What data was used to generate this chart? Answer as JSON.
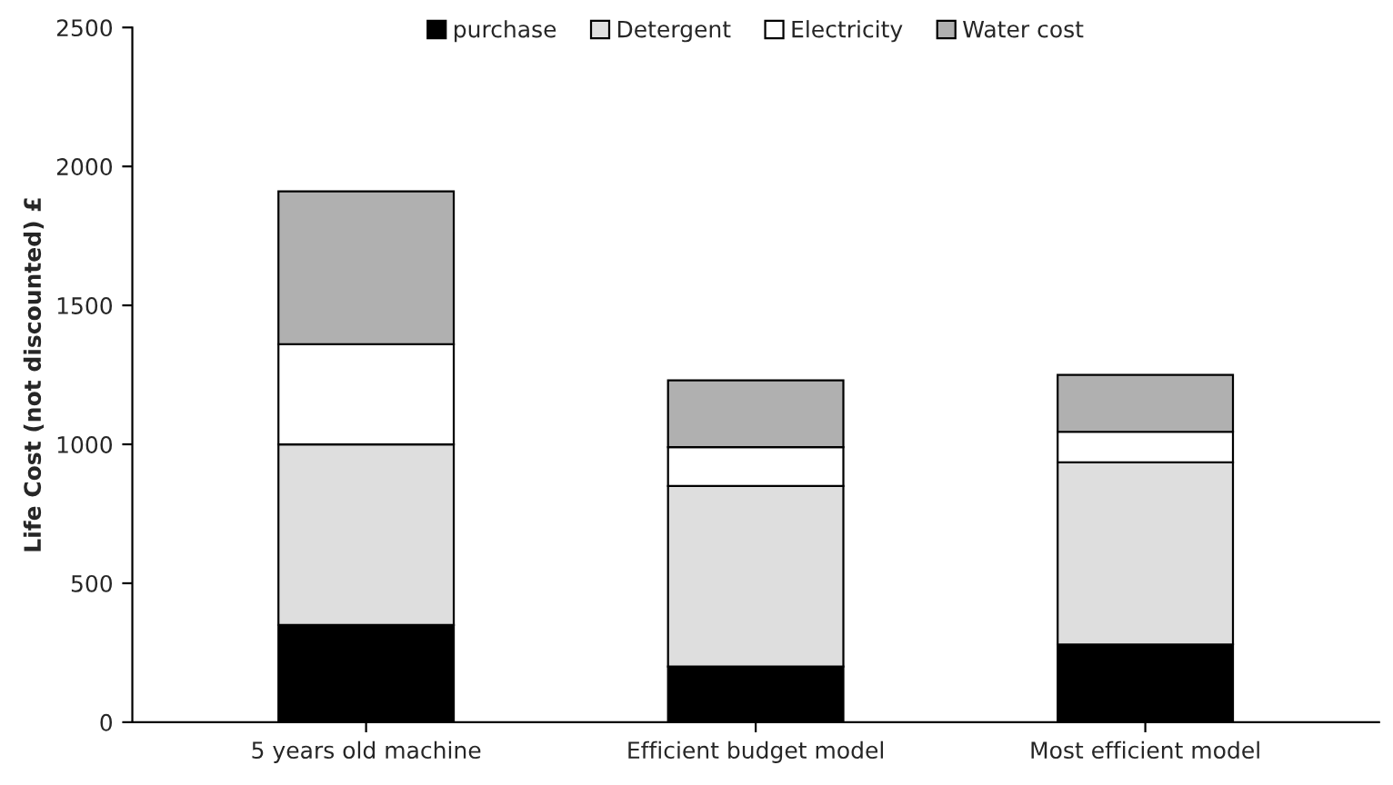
{
  "chart_data": {
    "type": "bar",
    "stacked": true,
    "ylabel": "Life Cost (not discounted) £",
    "categories": [
      "5 years old machine",
      "Efficient budget model",
      "Most efficient model"
    ],
    "series": [
      {
        "name": "purchase",
        "color": "#000000",
        "values": [
          350,
          200,
          280
        ]
      },
      {
        "name": "Detergent",
        "color": "#dedede",
        "values": [
          650,
          650,
          655
        ]
      },
      {
        "name": "Electricity",
        "color": "#ffffff",
        "values": [
          360,
          140,
          110
        ]
      },
      {
        "name": "Water cost",
        "color": "#b0b0b0",
        "values": [
          550,
          240,
          205
        ]
      }
    ],
    "ylim": [
      0,
      2500
    ],
    "yticks": [
      0,
      500,
      1000,
      1500,
      2000,
      2500
    ],
    "grid": false,
    "legend": "top"
  }
}
